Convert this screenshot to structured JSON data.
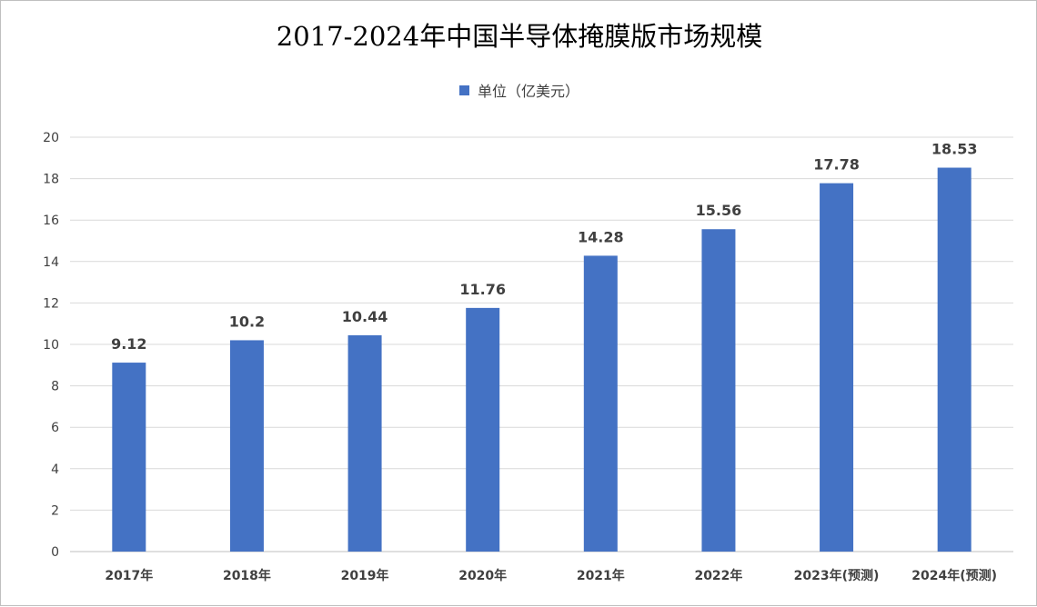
{
  "chart_data": {
    "type": "bar",
    "title": "2017-2024年中国半导体掩膜版市场规模",
    "categories": [
      "2017年",
      "2018年",
      "2019年",
      "2020年",
      "2021年",
      "2022年",
      "2023年(预测)",
      "2024年(预测)"
    ],
    "series": [
      {
        "name": "单位（亿美元）",
        "values": [
          9.12,
          10.2,
          10.44,
          11.76,
          14.28,
          15.56,
          17.78,
          18.53
        ],
        "color": "#4472c4"
      }
    ],
    "data_labels": [
      "9.12",
      "10.2",
      "10.44",
      "11.76",
      "14.28",
      "15.56",
      "17.78",
      "18.53"
    ],
    "y_ticks": [
      0,
      2,
      4,
      6,
      8,
      10,
      12,
      14,
      16,
      18,
      20
    ],
    "ylim": [
      0,
      20
    ],
    "grid": true,
    "legend_position": "top-center"
  },
  "colors": {
    "bar": "#4472c4",
    "grid": "#d9d9d9",
    "text": "#404040"
  }
}
